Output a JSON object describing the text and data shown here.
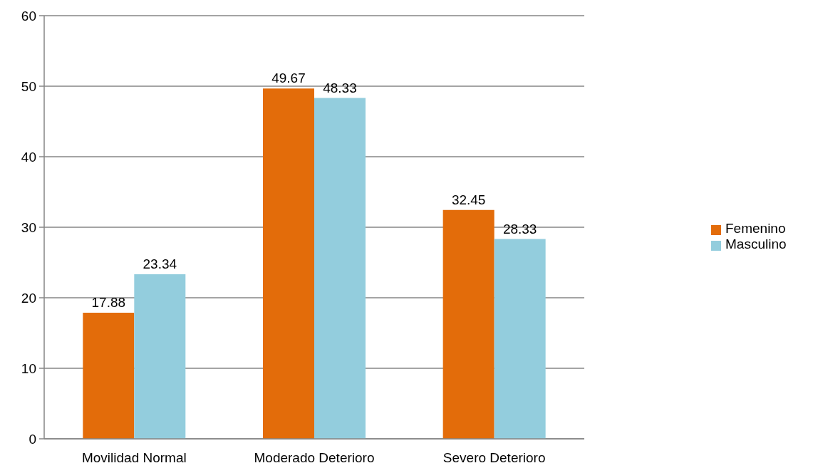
{
  "chart_data": {
    "type": "bar",
    "categories": [
      "Movilidad Normal",
      "Moderado Deterioro",
      "Severo Deterioro"
    ],
    "series": [
      {
        "name": "Femenino",
        "color": "#e36c0a",
        "values": [
          17.88,
          49.67,
          32.45
        ]
      },
      {
        "name": "Masculino",
        "color": "#93cddd",
        "values": [
          23.34,
          48.33,
          28.33
        ]
      }
    ],
    "ylim": [
      0,
      60
    ],
    "yticks": [
      0,
      10,
      20,
      30,
      40,
      50,
      60
    ],
    "grid": "y",
    "legend": "right",
    "data_labels": true
  }
}
